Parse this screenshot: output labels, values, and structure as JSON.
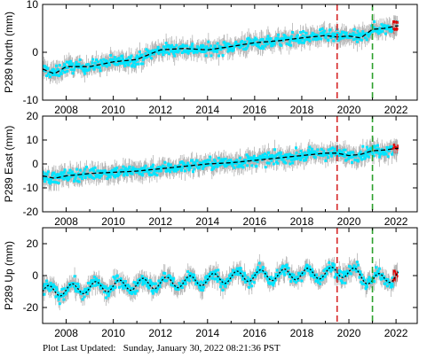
{
  "chart_data": [
    {
      "type": "scatter",
      "ylabel": "P289 North (mm)",
      "xlim": [
        2007.0,
        2022.9
      ],
      "ylim": [
        -10,
        10
      ],
      "xticks": [
        2008,
        2010,
        2012,
        2014,
        2016,
        2018,
        2020,
        2022
      ],
      "yticks": [
        -10,
        0,
        10
      ],
      "series_colors": {
        "error_bars": "#b4b4b4",
        "points": "#00e5ff",
        "model": "#000000",
        "recent": "#e00000"
      },
      "trend": {
        "x": [
          2007.0,
          2007.5,
          2008.0,
          2009.0,
          2010.0,
          2011.0,
          2012.0,
          2013.0,
          2014.0,
          2015.0,
          2016.0,
          2017.0,
          2018.0,
          2019.0,
          2019.5,
          2020.0,
          2020.5,
          2021.0,
          2021.5,
          2022.0
        ],
        "y": [
          -3.5,
          -4.5,
          -3.0,
          -3.0,
          -2.0,
          -1.5,
          0.5,
          0.8,
          0.5,
          1.2,
          2.0,
          2.4,
          3.0,
          3.5,
          3.2,
          3.4,
          3.0,
          4.8,
          5.0,
          5.5
        ]
      },
      "vlines": [
        {
          "x": 2019.5,
          "color": "#d62728",
          "style": "dashed"
        },
        {
          "x": 2021.0,
          "color": "#2ca02c",
          "style": "dashed"
        }
      ]
    },
    {
      "type": "scatter",
      "ylabel": "P289 East (mm)",
      "xlim": [
        2007.0,
        2022.9
      ],
      "ylim": [
        -20,
        20
      ],
      "xticks": [
        2008,
        2010,
        2012,
        2014,
        2016,
        2018,
        2020,
        2022
      ],
      "yticks": [
        -20,
        -10,
        0,
        10,
        20
      ],
      "series_colors": {
        "error_bars": "#b4b4b4",
        "points": "#00e5ff",
        "model": "#000000",
        "recent": "#e00000"
      },
      "trend": {
        "x": [
          2007.0,
          2007.5,
          2008.0,
          2009.0,
          2010.0,
          2011.0,
          2012.0,
          2013.0,
          2014.0,
          2015.0,
          2016.0,
          2017.0,
          2018.0,
          2019.0,
          2019.5,
          2020.0,
          2020.5,
          2021.0,
          2021.5,
          2022.0
        ],
        "y": [
          -5.0,
          -6.0,
          -5.0,
          -4.0,
          -3.5,
          -3.0,
          -2.0,
          -1.0,
          0.0,
          0.5,
          1.5,
          2.5,
          3.5,
          4.5,
          4.5,
          3.5,
          4.0,
          5.5,
          5.8,
          6.5
        ]
      },
      "vlines": [
        {
          "x": 2019.5,
          "color": "#d62728",
          "style": "dashed"
        },
        {
          "x": 2021.0,
          "color": "#2ca02c",
          "style": "dashed"
        }
      ]
    },
    {
      "type": "scatter",
      "ylabel": "P289 Up (mm)",
      "xlim": [
        2007.0,
        2022.9
      ],
      "ylim": [
        -30,
        30
      ],
      "xticks": [
        2008,
        2010,
        2012,
        2014,
        2016,
        2018,
        2020,
        2022
      ],
      "yticks": [
        -20,
        0,
        20
      ],
      "series_colors": {
        "error_bars": "#b4b4b4",
        "points": "#00e5ff",
        "model": "#000000",
        "recent": "#e00000"
      },
      "trend": {
        "x": [
          2007.0,
          2008.0,
          2009.0,
          2010.0,
          2011.0,
          2012.0,
          2013.0,
          2014.0,
          2015.0,
          2016.0,
          2017.0,
          2018.0,
          2019.0,
          2020.0,
          2021.0,
          2022.0
        ],
        "y": [
          -10.0,
          -9.0,
          -7.5,
          -6.5,
          -5.5,
          -4.5,
          -4.0,
          -2.5,
          -1.0,
          0.0,
          0.5,
          1.0,
          1.5,
          2.5,
          -3.0,
          0.0
        ]
      },
      "seasonal_amplitude": 3.5,
      "vlines": [
        {
          "x": 2019.5,
          "color": "#d62728",
          "style": "dashed"
        },
        {
          "x": 2021.0,
          "color": "#2ca02c",
          "style": "dashed"
        }
      ]
    }
  ],
  "footer": {
    "label": "Plot Last Updated:",
    "value": "Sunday, January 30, 2022 08:21:36 PST"
  }
}
